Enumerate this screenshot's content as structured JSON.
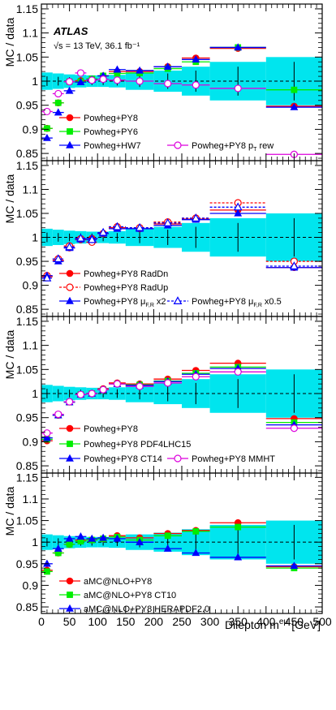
{
  "figure": {
    "experiment": "ATLAS",
    "energy_label": "√s = 13 TeV, 36.1 fb⁻¹",
    "ylabel": "MC / data",
    "xlabel": "Dilepton m",
    "xlabel_sup": "eμ",
    "xlabel_unit": "[GeV]",
    "x_ticks": [
      0,
      50,
      100,
      150,
      200,
      250,
      300,
      350,
      400,
      450,
      500
    ],
    "y_ticks": [
      0.85,
      0.9,
      0.95,
      1,
      1.05,
      1.1,
      1.15
    ],
    "uncertainty_color": "#00e5ee"
  },
  "chart_data": [
    {
      "type": "scatter",
      "xlim": [
        0,
        500
      ],
      "ylim": [
        0.835,
        1.16
      ],
      "bins": [
        [
          0,
          20
        ],
        [
          20,
          40
        ],
        [
          40,
          60
        ],
        [
          60,
          80
        ],
        [
          80,
          100
        ],
        [
          100,
          120
        ],
        [
          120,
          150
        ],
        [
          150,
          200
        ],
        [
          200,
          250
        ],
        [
          250,
          300
        ],
        [
          300,
          400
        ],
        [
          400,
          500
        ]
      ],
      "uncertainty": [
        0.018,
        0.016,
        0.014,
        0.013,
        0.012,
        0.012,
        0.013,
        0.018,
        0.022,
        0.03,
        0.04,
        0.05
      ],
      "data_error": [
        0.01,
        0.009,
        0.008,
        0.008,
        0.008,
        0.008,
        0.009,
        0.012,
        0.016,
        0.022,
        0.03,
        0.04
      ],
      "series": [
        {
          "name": "Powheg+PY8",
          "color": "#ff0000",
          "marker": "circle",
          "filled": true,
          "values": [
            0.902,
            0.955,
            0.999,
            1.001,
            1.002,
            1.011,
            1.02,
            1.02,
            1.03,
            1.048,
            1.068,
            0.948
          ]
        },
        {
          "name": "Powheg+PY6",
          "color": "#00ee00",
          "marker": "square",
          "filled": true,
          "values": [
            0.902,
            0.955,
            0.999,
            0.999,
            1.005,
            1.011,
            1.016,
            1.017,
            1.026,
            1.04,
            1.07,
            0.982
          ]
        },
        {
          "name": "Powheg+HW7",
          "color": "#0000ff",
          "marker": "triangle",
          "filled": true,
          "values": [
            0.882,
            0.935,
            0.98,
            0.998,
            1.003,
            1.011,
            1.024,
            1.022,
            1.03,
            1.045,
            1.07,
            0.946
          ]
        },
        {
          "name": "Powheg+PY8 p",
          "sub": "T",
          "suffix": " rew",
          "color": "#dd00dd",
          "marker": "circle",
          "filled": false,
          "values": [
            0.937,
            0.974,
            0.999,
            1.017,
            1.002,
            1.004,
            1.002,
            1.0,
            0.995,
            0.992,
            0.985,
            0.848
          ]
        }
      ]
    },
    {
      "type": "scatter",
      "xlim": [
        0,
        500
      ],
      "ylim": [
        0.835,
        1.16
      ],
      "bins": [
        [
          0,
          20
        ],
        [
          20,
          40
        ],
        [
          40,
          60
        ],
        [
          60,
          80
        ],
        [
          80,
          100
        ],
        [
          100,
          120
        ],
        [
          120,
          150
        ],
        [
          150,
          200
        ],
        [
          200,
          250
        ],
        [
          250,
          300
        ],
        [
          300,
          400
        ],
        [
          400,
          500
        ]
      ],
      "uncertainty": [
        0.018,
        0.016,
        0.014,
        0.013,
        0.012,
        0.012,
        0.013,
        0.018,
        0.022,
        0.03,
        0.04,
        0.05
      ],
      "data_error": [
        0.01,
        0.009,
        0.008,
        0.008,
        0.008,
        0.008,
        0.009,
        0.012,
        0.016,
        0.022,
        0.03,
        0.04
      ],
      "series": [
        {
          "name": "Powheg+PY8 RadDn",
          "color": "#ff0000",
          "marker": "circle",
          "filled": true,
          "dashed": false,
          "values": [
            0.918,
            0.952,
            0.978,
            0.995,
            0.998,
            1.008,
            1.02,
            1.018,
            1.028,
            1.038,
            1.057,
            0.937
          ]
        },
        {
          "name": "Powheg+PY8 RadUp",
          "color": "#ff0000",
          "marker": "circle",
          "filled": false,
          "dashed": true,
          "values": [
            0.92,
            0.955,
            0.982,
            0.997,
            0.99,
            1.008,
            1.022,
            1.02,
            1.032,
            1.04,
            1.072,
            0.95
          ]
        },
        {
          "name": "Powheg+PY8 μ",
          "sub": "F,R",
          "suffix": " x2",
          "color": "#0000ff",
          "marker": "triangle",
          "filled": true,
          "dashed": false,
          "values": [
            0.92,
            0.95,
            0.978,
            0.996,
            0.998,
            1.008,
            1.018,
            1.018,
            1.025,
            1.037,
            1.05,
            0.937
          ]
        },
        {
          "name": "Powheg+PY8 μ",
          "sub": "F,R",
          "suffix": " x0.5",
          "color": "#0000ff",
          "marker": "triangle",
          "filled": false,
          "dashed": true,
          "values": [
            0.915,
            0.955,
            0.98,
            0.998,
            0.995,
            1.01,
            1.022,
            1.02,
            1.03,
            1.04,
            1.063,
            0.94
          ]
        }
      ]
    },
    {
      "type": "scatter",
      "xlim": [
        0,
        500
      ],
      "ylim": [
        0.835,
        1.16
      ],
      "bins": [
        [
          0,
          20
        ],
        [
          20,
          40
        ],
        [
          40,
          60
        ],
        [
          60,
          80
        ],
        [
          80,
          100
        ],
        [
          100,
          120
        ],
        [
          120,
          150
        ],
        [
          150,
          200
        ],
        [
          200,
          250
        ],
        [
          250,
          300
        ],
        [
          300,
          400
        ],
        [
          400,
          500
        ]
      ],
      "uncertainty": [
        0.018,
        0.016,
        0.014,
        0.013,
        0.012,
        0.012,
        0.013,
        0.018,
        0.022,
        0.03,
        0.04,
        0.05
      ],
      "data_error": [
        0.01,
        0.009,
        0.008,
        0.008,
        0.008,
        0.008,
        0.009,
        0.012,
        0.016,
        0.022,
        0.03,
        0.04
      ],
      "series": [
        {
          "name": "Powheg+PY8",
          "color": "#ff0000",
          "marker": "circle",
          "filled": true,
          "values": [
            0.902,
            0.955,
            0.983,
            0.998,
            1.0,
            1.01,
            1.022,
            1.02,
            1.03,
            1.048,
            1.063,
            0.948
          ]
        },
        {
          "name": "Powheg+PY8 PDF4LHC15",
          "color": "#00ee00",
          "marker": "square",
          "filled": true,
          "values": [
            0.905,
            0.955,
            0.982,
            0.998,
            1.0,
            1.008,
            1.02,
            1.018,
            1.026,
            1.042,
            1.055,
            0.94
          ]
        },
        {
          "name": "Powheg+PY8 CT14",
          "color": "#0000ff",
          "marker": "triangle",
          "filled": true,
          "values": [
            0.908,
            0.955,
            0.982,
            0.998,
            1.0,
            1.008,
            1.02,
            1.017,
            1.025,
            1.04,
            1.052,
            0.935
          ]
        },
        {
          "name": "Powheg+PY8 MMHT",
          "color": "#dd00dd",
          "marker": "circle",
          "filled": false,
          "values": [
            0.918,
            0.957,
            0.983,
            0.998,
            1.0,
            1.008,
            1.02,
            1.015,
            1.022,
            1.035,
            1.045,
            0.928
          ]
        }
      ]
    },
    {
      "type": "scatter",
      "xlim": [
        0,
        500
      ],
      "ylim": [
        0.835,
        1.16
      ],
      "bins": [
        [
          0,
          20
        ],
        [
          20,
          40
        ],
        [
          40,
          60
        ],
        [
          60,
          80
        ],
        [
          80,
          100
        ],
        [
          100,
          120
        ],
        [
          120,
          150
        ],
        [
          150,
          200
        ],
        [
          200,
          250
        ],
        [
          250,
          300
        ],
        [
          300,
          400
        ],
        [
          400,
          500
        ]
      ],
      "uncertainty": [
        0.018,
        0.016,
        0.014,
        0.013,
        0.012,
        0.012,
        0.013,
        0.018,
        0.022,
        0.03,
        0.04,
        0.05
      ],
      "data_error": [
        0.01,
        0.009,
        0.008,
        0.008,
        0.008,
        0.008,
        0.009,
        0.012,
        0.016,
        0.022,
        0.03,
        0.04
      ],
      "series": [
        {
          "name": "aMC@NLO+PY8",
          "color": "#ff0000",
          "marker": "circle",
          "filled": true,
          "values": [
            0.935,
            0.975,
            0.995,
            1.005,
            1.005,
            1.008,
            1.015,
            1.01,
            1.02,
            1.027,
            1.045,
            0.943
          ]
        },
        {
          "name": "aMC@NLO+PY8 CT10",
          "color": "#00ee00",
          "marker": "square",
          "filled": true,
          "values": [
            0.932,
            0.975,
            0.995,
            1.002,
            1.005,
            1.008,
            1.012,
            1.005,
            1.015,
            1.025,
            1.035,
            0.94
          ]
        },
        {
          "name": "aMC@NLO+PY8 HERAPDF2.0",
          "color": "#0000ff",
          "marker": "triangle",
          "filled": true,
          "values": [
            0.95,
            0.985,
            1.008,
            1.013,
            1.008,
            1.01,
            1.008,
            1.0,
            0.985,
            0.975,
            0.965,
            0.945
          ]
        }
      ]
    }
  ]
}
